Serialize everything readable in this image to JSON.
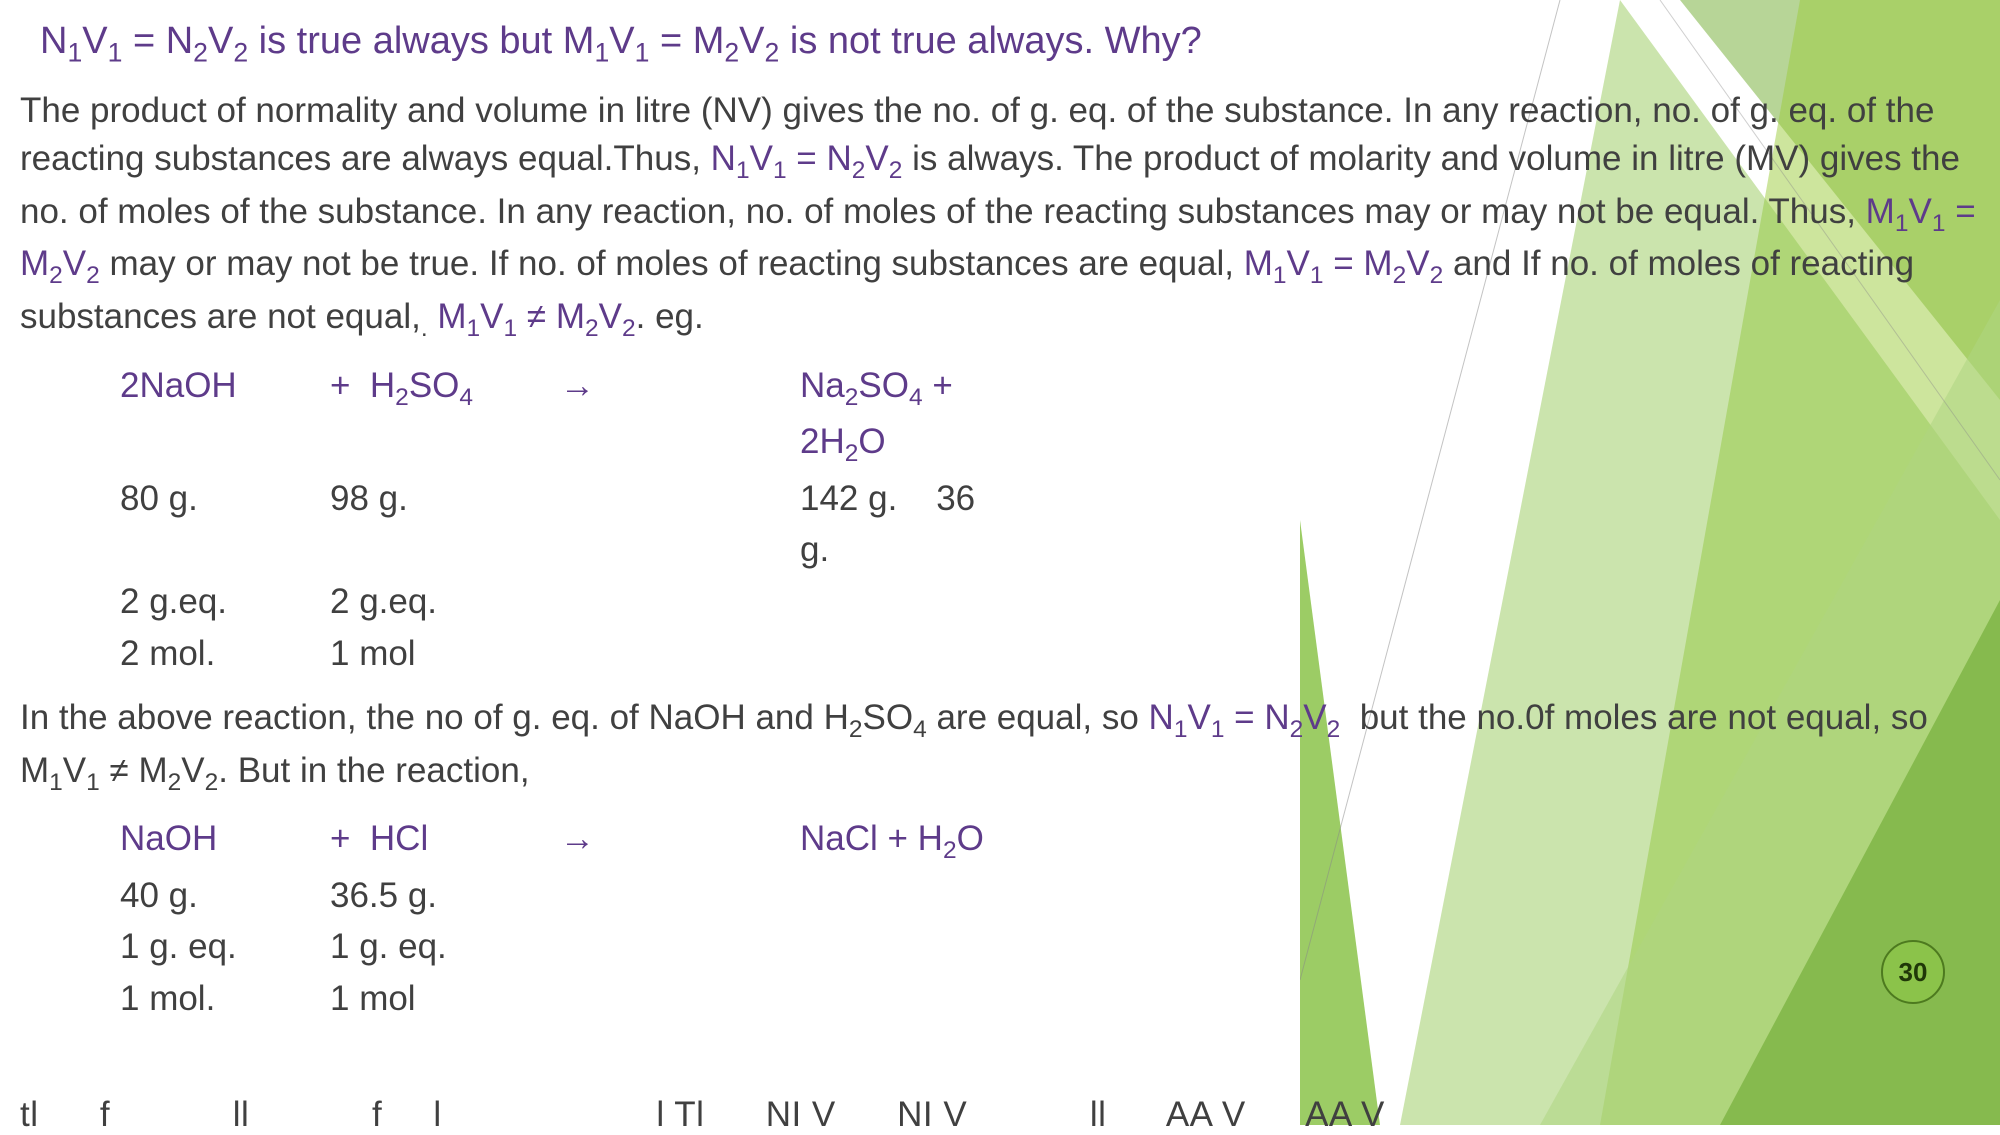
{
  "title_html": "N<sub>1</sub>V<sub>1</sub> = N<sub>2</sub>V<sub>2</sub> is true always but M<sub>1</sub>V<sub>1</sub> = M<sub>2</sub>V<sub>2</sub> is not true always. Why?",
  "para1_html": "The product of normality and volume in litre (NV) gives the no. of g. eq. of the substance. In any reaction, no. of g. eq. of the reacting substances are always equal.Thus, <span class=\"purple\">N<sub>1</sub>V<sub>1</sub> = N<sub>2</sub>V<sub>2</sub></span> is always. The product of molarity and volume in litre (MV) gives the no. of moles of the substance. In any reaction, no. of moles of the reacting substances may or may not be equal. Thus, <span class=\"purple\">M<sub>1</sub>V<sub>1</sub> = M<sub>2</sub>V<sub>2</sub></span> may or may not be true. If no. of moles of reacting substances are equal, <span class=\"purple\">M<sub>1</sub>V<sub>1</sub> = M<sub>2</sub>V<sub>2</sub></span> and If no. of moles of reacting substances are not equal,<sub>.</sub> <span class=\"purple\">M<sub>1</sub>V<sub>1</sub> ≠ M<sub>2</sub>V<sub>2</sub></span>. eg.",
  "reaction1": {
    "eq": {
      "c1": "2NaOH",
      "c2": "+&nbsp;&nbsp;H<sub>2</sub>SO<sub>4</sub>",
      "c3": "→",
      "c4": "Na<sub>2</sub>SO<sub>4</sub> + 2H<sub>2</sub>O"
    },
    "mass": {
      "c1": "80 g.",
      "c2": "98 g.",
      "c3": "",
      "c4": "142 g.&nbsp;&nbsp;&nbsp;&nbsp;36 g."
    },
    "geq": {
      "c1": "2 g.eq.",
      "c2": "2 g.eq.",
      "c3": "",
      "c4": ""
    },
    "mol": {
      "c1": "2 mol.",
      "c2": "1 mol",
      "c3": "",
      "c4": ""
    }
  },
  "para2_html": "In the above reaction, the no of g. eq. of NaOH and H<sub>2</sub>SO<sub>4</sub> are equal, so <span class=\"purple\">N<sub>1</sub>V<sub>1</sub> = N<sub>2</sub>V<sub>2</sub></span>&nbsp; but the no.0f moles are not equal, so M<sub>1</sub>V<sub>1</sub> ≠ M<sub>2</sub>V<sub>2</sub>. But in the reaction,",
  "reaction2": {
    "eq": {
      "c1": "NaOH",
      "c2": "+&nbsp;&nbsp;HCl",
      "c3": "→",
      "c4": "NaCl + H<sub>2</sub>O"
    },
    "mass": {
      "c1": "40 g.",
      "c2": "36.5 g.",
      "c3": "",
      "c4": ""
    },
    "geq": {
      "c1": "1 g. eq.",
      "c2": "1 g. eq.",
      "c3": "",
      "c4": ""
    },
    "mol": {
      "c1": "1 mol.",
      "c2": "1 mol",
      "c3": "",
      "c4": ""
    }
  },
  "page_number": "30",
  "cutoff_text": "tl &nbsp;&nbsp;&nbsp;&nbsp; f &nbsp;&nbsp;&nbsp;&nbsp;&nbsp;&nbsp;&nbsp;&nbsp;&nbsp;&nbsp; ll &nbsp;&nbsp;&nbsp;&nbsp;&nbsp;&nbsp;&nbsp;&nbsp;&nbsp;&nbsp; f &nbsp;&nbsp;&nbsp; l &nbsp;&nbsp;&nbsp;&nbsp;&nbsp;&nbsp;&nbsp;&nbsp;&nbsp;&nbsp;&nbsp;&nbsp;&nbsp;&nbsp;&nbsp;&nbsp;&nbsp;&nbsp;&nbsp; l  Tl &nbsp;&nbsp;&nbsp;&nbsp; NI V &nbsp;&nbsp;&nbsp;&nbsp; NI V &nbsp;&nbsp;&nbsp;&nbsp;&nbsp;&nbsp;&nbsp;&nbsp;&nbsp;&nbsp; ll &nbsp;&nbsp;&nbsp;&nbsp; AA V &nbsp;&nbsp;&nbsp;&nbsp; AA V",
  "colors": {
    "title": "#5e3b8a",
    "body": "#404040",
    "accent_light": "#b8e05a",
    "accent_mid": "#8bc34a",
    "accent_dark": "#5a8a1f"
  }
}
